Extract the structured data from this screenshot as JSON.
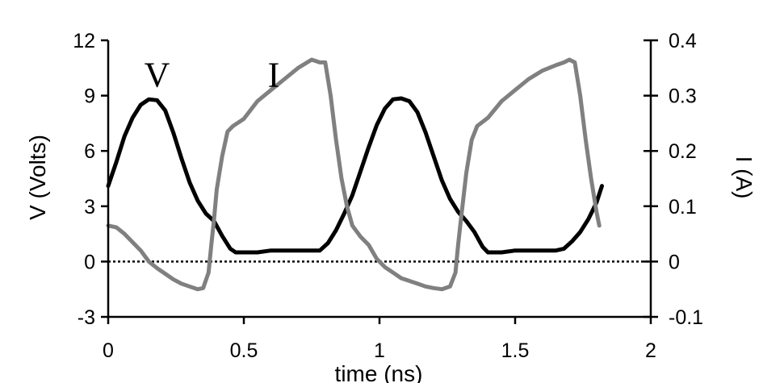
{
  "chart_data": {
    "type": "line",
    "title": "",
    "xlabel": "time (ns)",
    "ylabel": "V (Volts)",
    "y2label": "I (A)",
    "xlim": [
      0,
      2
    ],
    "ylim": [
      -3,
      12
    ],
    "y2lim": [
      -0.1,
      0.4
    ],
    "x_ticks": [
      0,
      0.5,
      1,
      1.5,
      2
    ],
    "x_tick_labels": [
      "0",
      "0.5",
      "1",
      "1.5",
      "2"
    ],
    "y_ticks": [
      -3,
      0,
      3,
      6,
      9,
      12
    ],
    "y_tick_labels": [
      "-3",
      "0",
      "3",
      "6",
      "9",
      "12"
    ],
    "y2_ticks": [
      -0.1,
      0,
      0.1,
      0.2,
      0.3,
      0.4
    ],
    "y2_tick_labels": [
      "-0.1",
      "0",
      "0.1",
      "0.2",
      "0.3",
      "0.4"
    ],
    "grid": false,
    "reference_line": {
      "y": 0,
      "style": "dotted"
    },
    "series": [
      {
        "name": "V",
        "axis": "left",
        "color": "#000000",
        "label_at": [
          0.18,
          10.1
        ],
        "x": [
          0,
          0.03,
          0.06,
          0.09,
          0.12,
          0.15,
          0.18,
          0.21,
          0.24,
          0.27,
          0.3,
          0.33,
          0.36,
          0.39,
          0.42,
          0.45,
          0.47,
          0.5,
          0.55,
          0.6,
          0.65,
          0.7,
          0.75,
          0.78,
          0.81,
          0.84,
          0.87,
          0.9,
          0.93,
          0.96,
          0.99,
          1.02,
          1.05,
          1.08,
          1.11,
          1.14,
          1.17,
          1.2,
          1.23,
          1.26,
          1.29,
          1.32,
          1.35,
          1.38,
          1.4,
          1.45,
          1.5,
          1.55,
          1.6,
          1.65,
          1.68,
          1.71,
          1.74,
          1.77,
          1.8,
          1.82
        ],
        "values": [
          4.1,
          5.4,
          6.8,
          7.8,
          8.5,
          8.8,
          8.75,
          8.2,
          7.0,
          5.6,
          4.3,
          3.3,
          2.6,
          2.2,
          1.4,
          0.7,
          0.5,
          0.5,
          0.5,
          0.6,
          0.6,
          0.6,
          0.6,
          0.6,
          1.0,
          1.7,
          2.6,
          3.6,
          4.9,
          6.2,
          7.4,
          8.3,
          8.8,
          8.85,
          8.7,
          8.1,
          7.0,
          5.7,
          4.4,
          3.4,
          2.7,
          2.2,
          1.6,
          0.8,
          0.5,
          0.5,
          0.6,
          0.6,
          0.6,
          0.6,
          0.7,
          1.1,
          1.6,
          2.3,
          3.2,
          4.1
        ]
      },
      {
        "name": "I",
        "axis": "right",
        "color": "#808080",
        "label_at": [
          0.61,
          10.1
        ],
        "x": [
          0,
          0.03,
          0.06,
          0.09,
          0.12,
          0.15,
          0.18,
          0.21,
          0.24,
          0.27,
          0.3,
          0.33,
          0.35,
          0.37,
          0.38,
          0.39,
          0.4,
          0.42,
          0.44,
          0.46,
          0.5,
          0.55,
          0.6,
          0.65,
          0.7,
          0.75,
          0.78,
          0.8,
          0.82,
          0.84,
          0.86,
          0.88,
          0.9,
          0.93,
          0.96,
          0.99,
          1.02,
          1.05,
          1.08,
          1.11,
          1.14,
          1.17,
          1.2,
          1.23,
          1.26,
          1.28,
          1.29,
          1.3,
          1.32,
          1.34,
          1.36,
          1.4,
          1.45,
          1.5,
          1.55,
          1.6,
          1.65,
          1.68,
          1.7,
          1.72,
          1.74,
          1.76,
          1.78,
          1.8,
          1.81
        ],
        "values": [
          0.065,
          0.062,
          0.05,
          0.035,
          0.02,
          0.0,
          -0.012,
          -0.022,
          -0.032,
          -0.04,
          -0.045,
          -0.05,
          -0.048,
          -0.02,
          0.03,
          0.075,
          0.13,
          0.19,
          0.235,
          0.245,
          0.258,
          0.29,
          0.31,
          0.33,
          0.35,
          0.365,
          0.36,
          0.36,
          0.3,
          0.22,
          0.15,
          0.1,
          0.065,
          0.045,
          0.03,
          0.005,
          -0.01,
          -0.02,
          -0.03,
          -0.035,
          -0.04,
          -0.045,
          -0.048,
          -0.05,
          -0.045,
          -0.02,
          0.03,
          0.075,
          0.16,
          0.22,
          0.245,
          0.26,
          0.29,
          0.31,
          0.33,
          0.345,
          0.355,
          0.36,
          0.365,
          0.36,
          0.3,
          0.22,
          0.15,
          0.09,
          0.065
        ]
      }
    ]
  }
}
